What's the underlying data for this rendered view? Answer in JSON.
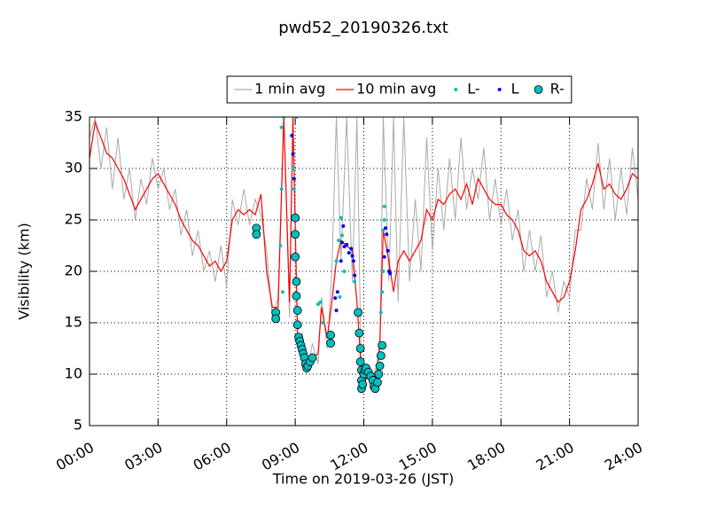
{
  "chart_data": {
    "type": "line",
    "title": "pwd52_20190326.txt",
    "xlabel": "Time on 2019-03-26 (JST)",
    "ylabel": "Visibility (km)",
    "xlim": [
      0,
      24
    ],
    "xticks": [
      {
        "value": 0,
        "label": "00:00"
      },
      {
        "value": 3,
        "label": "03:00"
      },
      {
        "value": 6,
        "label": "06:00"
      },
      {
        "value": 9,
        "label": "09:00"
      },
      {
        "value": 12,
        "label": "12:00"
      },
      {
        "value": 15,
        "label": "15:00"
      },
      {
        "value": 18,
        "label": "18:00"
      },
      {
        "value": 21,
        "label": "21:00"
      },
      {
        "value": 24,
        "label": "24:00"
      }
    ],
    "ylim": [
      5,
      35
    ],
    "yticks": [
      5,
      10,
      15,
      20,
      25,
      30,
      35
    ],
    "grid": true,
    "legend": "upper center",
    "x": [
      0,
      0.25,
      0.5,
      0.75,
      1,
      1.25,
      1.5,
      1.75,
      2,
      2.25,
      2.5,
      2.75,
      3,
      3.25,
      3.5,
      3.75,
      4,
      4.25,
      4.5,
      4.75,
      5,
      5.25,
      5.5,
      5.75,
      6,
      6.25,
      6.5,
      6.75,
      7,
      7.25,
      7.5,
      7.75,
      8,
      8.25,
      8.5,
      8.75,
      8.9,
      9.1,
      9.3,
      9.5,
      9.75,
      10,
      10.15,
      10.4,
      10.6,
      10.8,
      11,
      11.25,
      11.5,
      11.7,
      11.9,
      12.1,
      12.3,
      12.5,
      12.7,
      12.85,
      13.1,
      13.3,
      13.5,
      13.75,
      14,
      14.25,
      14.5,
      14.75,
      15,
      15.25,
      15.5,
      15.75,
      16,
      16.25,
      16.5,
      16.75,
      17,
      17.25,
      17.5,
      17.75,
      18,
      18.25,
      18.5,
      18.75,
      19,
      19.25,
      19.5,
      19.75,
      20,
      20.25,
      20.5,
      20.75,
      21,
      21.25,
      21.5,
      21.75,
      22,
      22.25,
      22.5,
      22.75,
      23,
      23.25,
      23.5,
      23.75,
      24
    ],
    "series": [
      {
        "name": "1 min avg",
        "color": "#aaaaaa",
        "style": "line",
        "values": [
          33,
          35,
          30,
          34,
          28,
          33,
          27,
          30,
          25,
          29,
          26.5,
          31,
          28,
          30,
          26,
          28,
          23.5,
          26,
          21.5,
          24,
          20,
          22,
          19,
          22.5,
          18.5,
          27,
          24.5,
          28,
          24.5,
          27,
          25.5,
          22,
          15.5,
          17.5,
          35,
          15.5,
          35,
          13,
          14,
          10,
          13,
          11,
          17.5,
          12.5,
          20,
          35,
          21,
          35,
          19,
          35,
          8.5,
          11,
          8.5,
          10.5,
          11,
          35,
          19,
          35,
          17,
          35,
          19,
          27,
          20,
          33,
          22,
          30,
          24,
          31,
          25,
          33,
          26,
          30,
          27,
          32,
          25,
          29,
          24.5,
          28,
          23,
          26,
          20,
          24,
          20,
          23.5,
          17.5,
          20,
          16,
          19,
          17.5,
          24,
          24,
          29,
          26,
          32.5,
          26,
          31,
          25,
          30,
          25.5,
          32,
          27
        ]
      },
      {
        "name": "10 min avg",
        "color": "#ff0000",
        "style": "line",
        "values": [
          31,
          34.5,
          33,
          31.5,
          31,
          30,
          29,
          27.5,
          26,
          27,
          28,
          29,
          29.5,
          28.5,
          27.5,
          26.5,
          25,
          24,
          23,
          22.5,
          21.5,
          20.5,
          21,
          20,
          21,
          25,
          26,
          25.5,
          26,
          25.5,
          27.5,
          20,
          16.5,
          16.5,
          35,
          17,
          35,
          14,
          12.5,
          11,
          11.5,
          12,
          16.5,
          13.5,
          17,
          21,
          23,
          22.5,
          22,
          17,
          10,
          9.5,
          10,
          9,
          13,
          24,
          21,
          18,
          21,
          22,
          21,
          22,
          23,
          26,
          25,
          27,
          26.5,
          27.5,
          28,
          27,
          28.5,
          26.5,
          29,
          28,
          27,
          26.5,
          26.5,
          25.5,
          25,
          24,
          22,
          21.5,
          22,
          21,
          19,
          18,
          17,
          17.5,
          19,
          22,
          26,
          27,
          28.5,
          30.5,
          28,
          28.5,
          27.5,
          27,
          28,
          29.5,
          29
        ]
      },
      {
        "name": "L-",
        "color": "#00bfbf",
        "style": "dot",
        "x": [
          8.35,
          8.4,
          8.4,
          8.45,
          8.5,
          8.9,
          8.95,
          9.05,
          10,
          10.1,
          10.2,
          10.8,
          10.9,
          10.95,
          11,
          11.05,
          11.15,
          11.6,
          12.75,
          12.8,
          12.85,
          12.85,
          12.9,
          12.9
        ],
        "values": [
          22.5,
          34,
          28,
          18,
          35,
          30,
          28,
          35,
          16.8,
          17,
          15,
          21,
          23,
          17.5,
          25.2,
          23.5,
          20,
          19,
          16,
          18,
          20,
          24,
          25,
          26.3
        ]
      },
      {
        "name": "L",
        "color": "#0000ff",
        "style": "dot",
        "x": [
          8.85,
          8.9,
          8.95,
          10.75,
          10.8,
          10.85,
          11,
          11.05,
          11.1,
          11.15,
          11.25,
          11.35,
          11.45,
          11.5,
          11.55,
          11.6,
          12.9,
          12.95,
          13,
          13.05,
          13.1,
          13.15
        ],
        "values": [
          33.2,
          31.4,
          29,
          17.4,
          16.2,
          18,
          21,
          22.8,
          24.4,
          22.4,
          22.6,
          21.8,
          22.2,
          21.5,
          21,
          19.6,
          21.4,
          24.2,
          23.6,
          22,
          20,
          19.8
        ]
      },
      {
        "name": "R-",
        "color": "#00bfbf",
        "style": "circle",
        "x": [
          7.3,
          7.3,
          8.15,
          8.15,
          9,
          9,
          9,
          9.05,
          9.05,
          9.1,
          9.1,
          9.15,
          9.2,
          9.25,
          9.3,
          9.35,
          9.4,
          9.45,
          9.5,
          9.55,
          9.65,
          9.75,
          10.55,
          10.55,
          11.75,
          11.8,
          11.85,
          11.85,
          11.9,
          11.9,
          11.9,
          11.95,
          12,
          12.05,
          12.1,
          12.2,
          12.3,
          12.4,
          12.45,
          12.5,
          12.6,
          12.65,
          12.7,
          12.75,
          12.8
        ],
        "values": [
          24.2,
          23.6,
          16,
          15.4,
          25.2,
          23.6,
          21.4,
          19,
          17.6,
          16.2,
          14.8,
          13.6,
          13.2,
          12.8,
          12.4,
          12,
          11.6,
          11,
          10.6,
          10.8,
          11.2,
          11.6,
          13,
          13.8,
          16,
          14,
          12.5,
          11.2,
          10.4,
          9.4,
          8.6,
          9,
          10,
          10.4,
          10.6,
          10.2,
          9.8,
          9.4,
          8.8,
          8.6,
          9.2,
          10,
          10.8,
          11.8,
          12.8
        ]
      }
    ]
  }
}
